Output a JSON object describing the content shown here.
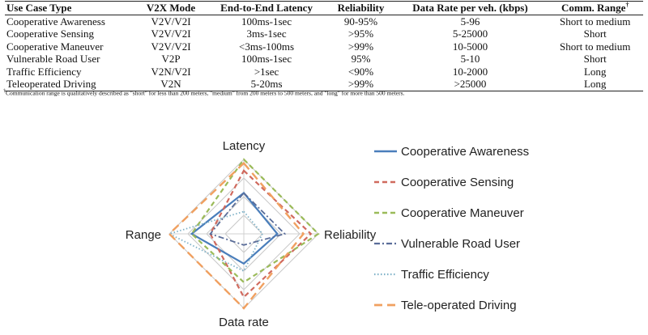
{
  "table": {
    "headers": [
      {
        "text": "Use Case Type",
        "align": "left"
      },
      {
        "text": "V2X Mode",
        "align": "center"
      },
      {
        "text": "End-to-End Latency",
        "align": "center"
      },
      {
        "text": "Reliability",
        "align": "center"
      },
      {
        "text": "Data Rate per veh. (kbps)",
        "align": "center"
      },
      {
        "text": "Comm. Range",
        "align": "center",
        "sup": "†"
      }
    ],
    "rows": [
      [
        "Cooperative Awareness",
        "V2V/V2I",
        "100ms-1sec",
        "90-95%",
        "5-96",
        "Short to medium"
      ],
      [
        "Cooperative Sensing",
        "V2V/V2I",
        "3ms-1sec",
        ">95%",
        "5-25000",
        "Short"
      ],
      [
        "Cooperative Maneuver",
        "V2V/V2I",
        "<3ms-100ms",
        ">99%",
        "10-5000",
        "Short to medium"
      ],
      [
        "Vulnerable Road User",
        "V2P",
        "100ms-1sec",
        "95%",
        "5-10",
        "Short"
      ],
      [
        "Traffic Efficiency",
        "V2N/V2I",
        ">1sec",
        "<90%",
        "10-2000",
        "Long"
      ],
      [
        "Teleoperated Driving",
        "V2N",
        "5-20ms",
        ">99%",
        ">25000",
        "Long"
      ]
    ]
  },
  "footnote": {
    "mark": "†",
    "text": "Communication range is qualitatively described as \"short\" for less than 200 meters, \"medium\" from 200 meters to 500 meters, and \"long\" for more than 500 meters."
  },
  "chart_data": {
    "type": "radar",
    "axes": [
      "Latency",
      "Reliability",
      "Data rate",
      "Range"
    ],
    "grid": true,
    "legend_position": "right",
    "series": [
      {
        "name": "Cooperative Awareness",
        "values": [
          0.55,
          0.45,
          0.4,
          0.7
        ],
        "color": "#4a7ebb",
        "dash": "solid",
        "width": 2.2
      },
      {
        "name": "Cooperative Sensing",
        "values": [
          0.85,
          0.9,
          0.85,
          0.45
        ],
        "color": "#d06a5e",
        "dash": "dashed",
        "width": 2.2
      },
      {
        "name": "Cooperative Maneuver",
        "values": [
          1.0,
          1.0,
          0.65,
          0.7
        ],
        "color": "#9bbb59",
        "dash": "dashed",
        "width": 2.2
      },
      {
        "name": "Vulnerable Road User",
        "values": [
          0.55,
          0.55,
          0.15,
          0.45
        ],
        "color": "#5a6d99",
        "dash": "dashdot",
        "width": 1.8
      },
      {
        "name": "Traffic Efficiency",
        "values": [
          0.3,
          0.25,
          0.5,
          1.0
        ],
        "color": "#7fb2c8",
        "dash": "dotted",
        "width": 1.8
      },
      {
        "name": "Tele-operated Driving",
        "values": [
          0.95,
          0.8,
          1.0,
          1.0
        ],
        "color": "#f0a060",
        "dash": "longdash",
        "width": 2.4
      }
    ]
  }
}
